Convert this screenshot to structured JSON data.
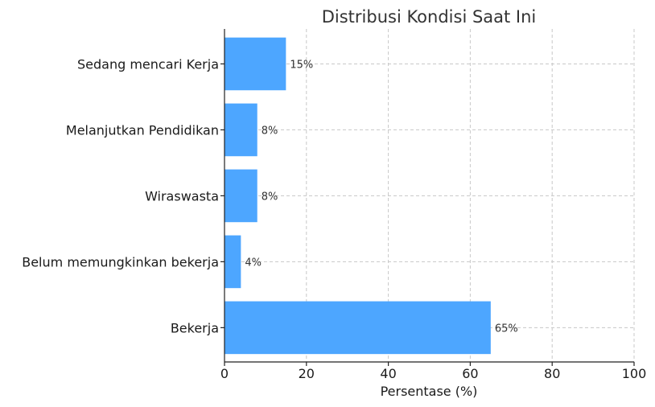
{
  "chart_data": {
    "type": "bar",
    "orientation": "horizontal",
    "title": "Distribusi Kondisi Saat Ini",
    "xlabel": "Persentase (%)",
    "ylabel": "",
    "xlim": [
      0,
      100
    ],
    "x_ticks": [
      0,
      20,
      40,
      60,
      80,
      100
    ],
    "grid": true,
    "categories": [
      "Bekerja",
      "Belum memungkinkan bekerja",
      "Wiraswasta",
      "Melanjutkan Pendidikan",
      "Sedang mencari Kerja"
    ],
    "values": [
      65,
      4,
      8,
      8,
      15
    ],
    "data_labels": [
      "65%",
      "4%",
      "8%",
      "8%",
      "15%"
    ],
    "bar_color": "#4da6ff"
  }
}
